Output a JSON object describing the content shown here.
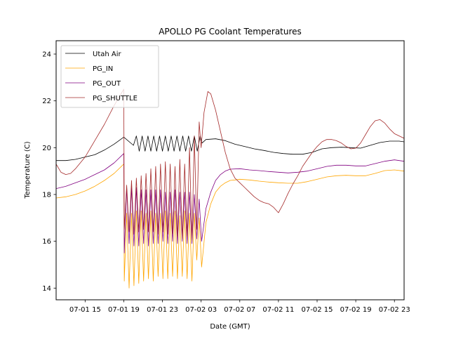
{
  "chart_data": {
    "type": "line",
    "title": "APOLLO PG Coolant Temperatures",
    "xlabel": "Date (GMT)",
    "ylabel": "Temperature (C)",
    "x_unit": "hours since 07-01 12:00 GMT",
    "xlim": [
      0,
      36
    ],
    "ylim": [
      13.5,
      24.57
    ],
    "grid": false,
    "legend_position": "top-left",
    "x_ticks": [
      {
        "value": 3,
        "label": "07-01 15"
      },
      {
        "value": 7,
        "label": "07-01 19"
      },
      {
        "value": 11,
        "label": "07-01 23"
      },
      {
        "value": 15,
        "label": "07-02 03"
      },
      {
        "value": 19,
        "label": "07-02 07"
      },
      {
        "value": 23,
        "label": "07-02 11"
      },
      {
        "value": 27,
        "label": "07-02 15"
      },
      {
        "value": 31,
        "label": "07-02 19"
      },
      {
        "value": 35,
        "label": "07-02 23"
      }
    ],
    "y_ticks": [
      {
        "value": 14,
        "label": "14"
      },
      {
        "value": 16,
        "label": "16"
      },
      {
        "value": 18,
        "label": "18"
      },
      {
        "value": 20,
        "label": "20"
      },
      {
        "value": 22,
        "label": "22"
      },
      {
        "value": 24,
        "label": "24"
      }
    ],
    "series": [
      {
        "name": "Utah Air",
        "color": "#000000",
        "points": [
          [
            0,
            19.45
          ],
          [
            1,
            19.45
          ],
          [
            2,
            19.5
          ],
          [
            3,
            19.6
          ],
          [
            4,
            19.7
          ],
          [
            5,
            19.9
          ],
          [
            6,
            20.15
          ],
          [
            7,
            20.45
          ],
          [
            8,
            20.1
          ],
          [
            8.3,
            20.5
          ],
          [
            8.6,
            19.85
          ],
          [
            8.9,
            20.5
          ],
          [
            9.2,
            19.85
          ],
          [
            9.5,
            20.5
          ],
          [
            9.8,
            19.85
          ],
          [
            10.1,
            20.5
          ],
          [
            10.4,
            19.85
          ],
          [
            10.7,
            20.5
          ],
          [
            11,
            19.85
          ],
          [
            11.3,
            20.5
          ],
          [
            11.6,
            19.85
          ],
          [
            11.9,
            20.5
          ],
          [
            12.2,
            19.85
          ],
          [
            12.5,
            20.5
          ],
          [
            12.8,
            19.85
          ],
          [
            13.1,
            20.5
          ],
          [
            13.4,
            19.85
          ],
          [
            13.7,
            20.5
          ],
          [
            14,
            19.85
          ],
          [
            14.3,
            20.5
          ],
          [
            14.6,
            19.85
          ],
          [
            14.9,
            20.5
          ],
          [
            15.1,
            20.2
          ],
          [
            15.5,
            20.35
          ],
          [
            16.5,
            20.38
          ],
          [
            17.5,
            20.3
          ],
          [
            18.5,
            20.15
          ],
          [
            19.5,
            20.05
          ],
          [
            20.5,
            19.95
          ],
          [
            21.5,
            19.88
          ],
          [
            22.5,
            19.8
          ],
          [
            23.5,
            19.75
          ],
          [
            24.5,
            19.72
          ],
          [
            25.5,
            19.72
          ],
          [
            26.5,
            19.8
          ],
          [
            27.5,
            19.95
          ],
          [
            28.5,
            20.0
          ],
          [
            29.5,
            20.02
          ],
          [
            30.5,
            20.0
          ],
          [
            31.5,
            19.98
          ],
          [
            32.5,
            20.1
          ],
          [
            33.5,
            20.22
          ],
          [
            34.5,
            20.28
          ],
          [
            35.5,
            20.28
          ],
          [
            36,
            20.25
          ]
        ]
      },
      {
        "name": "PG_IN",
        "color": "#ffa500",
        "points": [
          [
            0,
            17.85
          ],
          [
            1,
            17.9
          ],
          [
            2,
            18.0
          ],
          [
            3,
            18.15
          ],
          [
            4,
            18.35
          ],
          [
            5,
            18.6
          ],
          [
            6,
            18.9
          ],
          [
            7,
            19.3
          ],
          [
            7.05,
            14.3
          ],
          [
            7.3,
            17.2
          ],
          [
            7.55,
            14.0
          ],
          [
            7.8,
            17.2
          ],
          [
            8.05,
            14.1
          ],
          [
            8.3,
            17.3
          ],
          [
            8.55,
            14.2
          ],
          [
            8.8,
            17.3
          ],
          [
            9.05,
            14.3
          ],
          [
            9.3,
            17.2
          ],
          [
            9.55,
            14.4
          ],
          [
            9.8,
            17.3
          ],
          [
            10.05,
            14.3
          ],
          [
            10.3,
            17.2
          ],
          [
            10.55,
            14.5
          ],
          [
            10.8,
            17.2
          ],
          [
            11.05,
            14.4
          ],
          [
            11.3,
            17.3
          ],
          [
            11.55,
            14.4
          ],
          [
            11.8,
            17.2
          ],
          [
            12.05,
            14.5
          ],
          [
            12.3,
            17.3
          ],
          [
            12.55,
            14.4
          ],
          [
            12.8,
            17.1
          ],
          [
            13.05,
            14.5
          ],
          [
            13.3,
            17.3
          ],
          [
            13.55,
            14.4
          ],
          [
            13.8,
            17.2
          ],
          [
            14.05,
            14.3
          ],
          [
            14.3,
            17.2
          ],
          [
            14.55,
            15.2
          ],
          [
            14.8,
            17.0
          ],
          [
            15.05,
            14.9
          ],
          [
            15.5,
            16.8
          ],
          [
            16,
            17.6
          ],
          [
            16.5,
            18.1
          ],
          [
            17,
            18.35
          ],
          [
            17.5,
            18.5
          ],
          [
            18,
            18.6
          ],
          [
            18.5,
            18.62
          ],
          [
            19,
            18.65
          ],
          [
            20,
            18.62
          ],
          [
            21,
            18.57
          ],
          [
            22,
            18.53
          ],
          [
            23,
            18.5
          ],
          [
            24,
            18.48
          ],
          [
            25,
            18.48
          ],
          [
            26,
            18.55
          ],
          [
            27,
            18.65
          ],
          [
            28,
            18.75
          ],
          [
            29,
            18.8
          ],
          [
            30,
            18.82
          ],
          [
            31,
            18.8
          ],
          [
            32,
            18.8
          ],
          [
            33,
            18.9
          ],
          [
            34,
            19.02
          ],
          [
            35,
            19.05
          ],
          [
            36,
            19.0
          ]
        ]
      },
      {
        "name": "PG_OUT",
        "color": "#800080",
        "points": [
          [
            0,
            18.25
          ],
          [
            1,
            18.35
          ],
          [
            2,
            18.5
          ],
          [
            3,
            18.65
          ],
          [
            4,
            18.85
          ],
          [
            5,
            19.05
          ],
          [
            6,
            19.35
          ],
          [
            7,
            19.75
          ],
          [
            7.05,
            15.5
          ],
          [
            7.3,
            18.3
          ],
          [
            7.55,
            15.9
          ],
          [
            7.8,
            18.3
          ],
          [
            8.05,
            15.8
          ],
          [
            8.3,
            18.3
          ],
          [
            8.55,
            15.8
          ],
          [
            8.8,
            18.2
          ],
          [
            9.05,
            15.9
          ],
          [
            9.3,
            18.2
          ],
          [
            9.55,
            15.8
          ],
          [
            9.8,
            18.2
          ],
          [
            10.05,
            15.9
          ],
          [
            10.3,
            18.2
          ],
          [
            10.55,
            15.9
          ],
          [
            10.8,
            18.2
          ],
          [
            11.05,
            16.0
          ],
          [
            11.3,
            18.1
          ],
          [
            11.55,
            15.9
          ],
          [
            11.8,
            18.1
          ],
          [
            12.05,
            16.0
          ],
          [
            12.3,
            18.2
          ],
          [
            12.55,
            15.9
          ],
          [
            12.8,
            18.1
          ],
          [
            13.05,
            16.0
          ],
          [
            13.3,
            18.1
          ],
          [
            13.55,
            15.9
          ],
          [
            13.8,
            18.1
          ],
          [
            14.05,
            15.9
          ],
          [
            14.3,
            18.0
          ],
          [
            14.55,
            16.1
          ],
          [
            14.8,
            17.8
          ],
          [
            15.05,
            16.0
          ],
          [
            15.5,
            17.4
          ],
          [
            16,
            18.1
          ],
          [
            16.5,
            18.6
          ],
          [
            17,
            18.85
          ],
          [
            17.5,
            19.0
          ],
          [
            18,
            19.08
          ],
          [
            19,
            19.1
          ],
          [
            20,
            19.05
          ],
          [
            21,
            19.02
          ],
          [
            22,
            18.98
          ],
          [
            23,
            18.95
          ],
          [
            24,
            18.92
          ],
          [
            25,
            18.95
          ],
          [
            26,
            19.0
          ],
          [
            27,
            19.1
          ],
          [
            28,
            19.2
          ],
          [
            29,
            19.25
          ],
          [
            30,
            19.25
          ],
          [
            31,
            19.22
          ],
          [
            32,
            19.22
          ],
          [
            33,
            19.32
          ],
          [
            34,
            19.42
          ],
          [
            35,
            19.48
          ],
          [
            36,
            19.42
          ]
        ]
      },
      {
        "name": "PG_SHUTTLE",
        "color": "#a52a2a",
        "points": [
          [
            0,
            19.3
          ],
          [
            0.5,
            18.95
          ],
          [
            1,
            18.85
          ],
          [
            1.5,
            18.9
          ],
          [
            2,
            19.1
          ],
          [
            3,
            19.6
          ],
          [
            4,
            20.3
          ],
          [
            5,
            21.0
          ],
          [
            6,
            21.8
          ],
          [
            7,
            22.5
          ],
          [
            7.05,
            16.5
          ],
          [
            7.3,
            18.4
          ],
          [
            7.55,
            16.4
          ],
          [
            7.8,
            18.6
          ],
          [
            8.05,
            16.3
          ],
          [
            8.3,
            18.7
          ],
          [
            8.55,
            16.4
          ],
          [
            8.8,
            18.8
          ],
          [
            9.05,
            16.5
          ],
          [
            9.3,
            18.9
          ],
          [
            9.55,
            16.4
          ],
          [
            9.8,
            19.1
          ],
          [
            10.05,
            16.4
          ],
          [
            10.3,
            19.2
          ],
          [
            10.55,
            16.3
          ],
          [
            10.8,
            19.3
          ],
          [
            11.05,
            16.4
          ],
          [
            11.3,
            19.4
          ],
          [
            11.55,
            16.3
          ],
          [
            11.8,
            19.3
          ],
          [
            12.05,
            16.3
          ],
          [
            12.3,
            19.2
          ],
          [
            12.55,
            16.2
          ],
          [
            12.8,
            19.5
          ],
          [
            13.05,
            16.1
          ],
          [
            13.3,
            19.3
          ],
          [
            13.55,
            16.2
          ],
          [
            13.8,
            20.0
          ],
          [
            14.05,
            16.0
          ],
          [
            14.3,
            20.5
          ],
          [
            14.55,
            16.5
          ],
          [
            14.8,
            21.1
          ],
          [
            15.0,
            20.0
          ],
          [
            15.3,
            21.5
          ],
          [
            15.7,
            22.4
          ],
          [
            16,
            22.3
          ],
          [
            16.5,
            21.6
          ],
          [
            17,
            20.7
          ],
          [
            17.5,
            19.8
          ],
          [
            18,
            19.1
          ],
          [
            18.5,
            18.7
          ],
          [
            19,
            18.5
          ],
          [
            19.5,
            18.3
          ],
          [
            20,
            18.1
          ],
          [
            20.5,
            17.9
          ],
          [
            21,
            17.75
          ],
          [
            21.5,
            17.65
          ],
          [
            22,
            17.6
          ],
          [
            22.5,
            17.45
          ],
          [
            23,
            17.22
          ],
          [
            23.5,
            17.6
          ],
          [
            24,
            18.05
          ],
          [
            24.5,
            18.45
          ],
          [
            25,
            18.8
          ],
          [
            25.5,
            19.2
          ],
          [
            26,
            19.5
          ],
          [
            26.5,
            19.8
          ],
          [
            27,
            20.05
          ],
          [
            27.5,
            20.25
          ],
          [
            28,
            20.35
          ],
          [
            28.5,
            20.35
          ],
          [
            29,
            20.3
          ],
          [
            29.5,
            20.2
          ],
          [
            30,
            20.05
          ],
          [
            30.5,
            19.95
          ],
          [
            31,
            19.98
          ],
          [
            31.5,
            20.2
          ],
          [
            32,
            20.55
          ],
          [
            32.5,
            20.9
          ],
          [
            33,
            21.15
          ],
          [
            33.5,
            21.2
          ],
          [
            34,
            21.05
          ],
          [
            34.5,
            20.8
          ],
          [
            35,
            20.6
          ],
          [
            36,
            20.4
          ]
        ]
      }
    ]
  }
}
